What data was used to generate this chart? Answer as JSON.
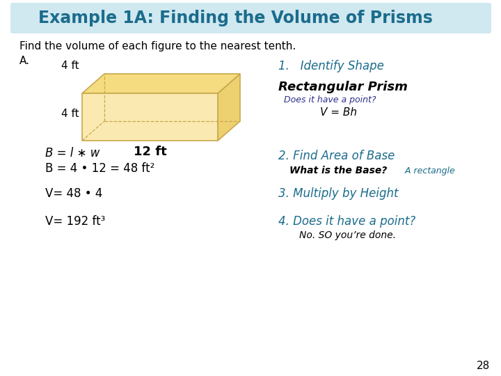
{
  "title": "Example 1A: Finding the Volume of Prisms",
  "title_color": "#1B6C8C",
  "title_fontsize": 17,
  "background_color": "#ffffff",
  "subtitle": "Find the volume of each figure to the nearest tenth.",
  "label_A": "A.",
  "dim_4ft_top": "4 ft",
  "dim_4ft_side": "4 ft",
  "dim_12ft": "12 ft",
  "step1_header": "1.   Identify Shape",
  "step1_shape": "Rectangular Prism",
  "step1_question": "Does it have a point?",
  "step1_formula": "V = Bh",
  "step2_header": "2. Find Area of Base",
  "step2_sub1": "What is the Base?",
  "step2_sub2": " A rectangle",
  "step3_header": "3. Multiply by Height",
  "step4_header": "4. Does it have a point?",
  "step4_sub": "No. SO you’re done.",
  "eq1": "B = l ∗ w",
  "eq2": "B = 4 • 12 = 48 ft²",
  "eq3": "V= 48 • 4",
  "eq4": "V= 192 ft³",
  "page_num": "28",
  "prism_face_color": "#FAE9B0",
  "prism_edge_color": "#C8A84B",
  "prism_top_color": "#F5DC80",
  "prism_side_color": "#EDD070",
  "title_bar_color": "#D0E8F0",
  "dark_blue": "#2C2C8C",
  "step_color": "#1B6C8C"
}
